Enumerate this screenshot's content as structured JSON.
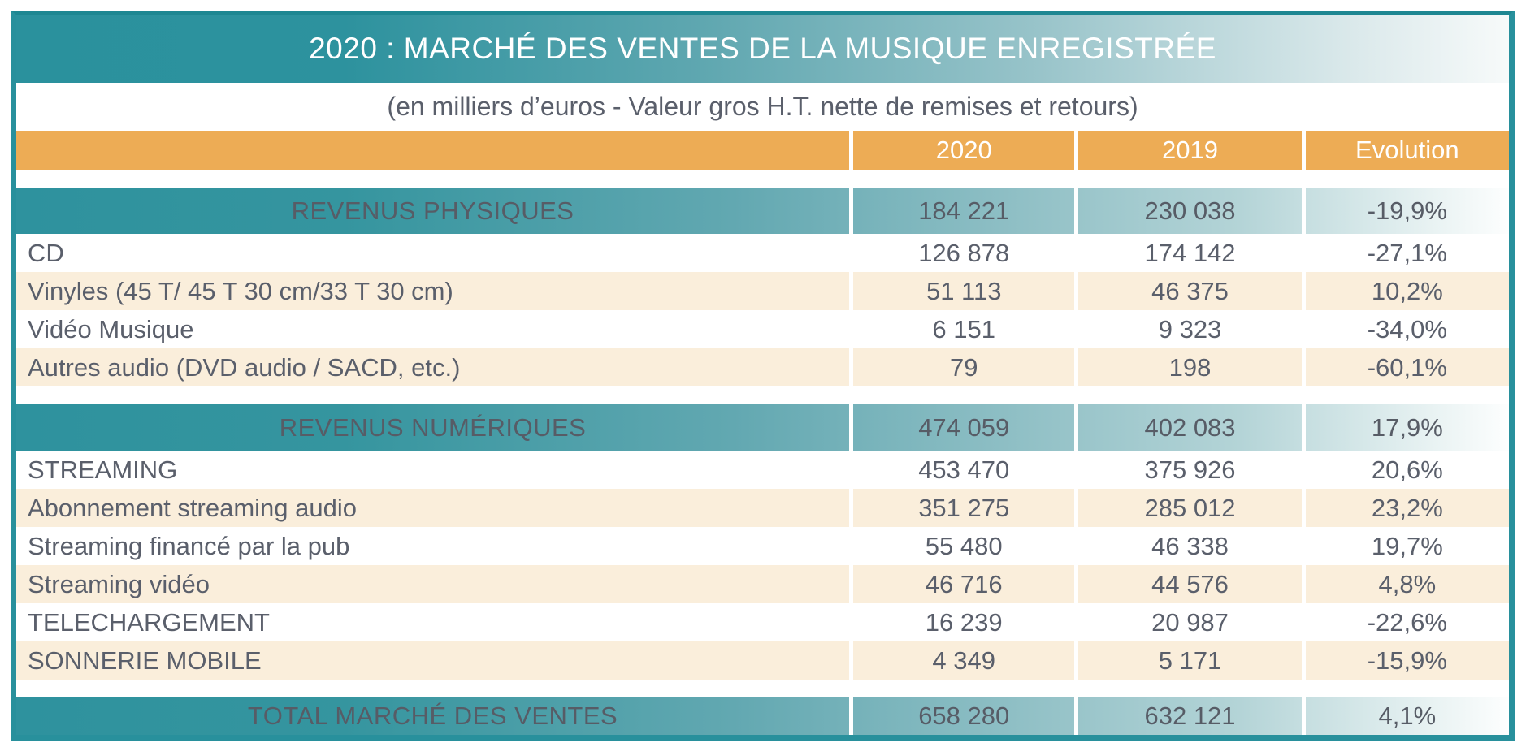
{
  "title": "2020 : MARCHÉ DES VENTES DE LA MUSIQUE ENREGISTRÉE",
  "subtitle": "(en milliers d’euros - Valeur gros H.T. nette de remises et retours)",
  "header": {
    "columns": [
      "",
      "2020",
      "2019",
      "Evolution"
    ]
  },
  "rows": [
    {
      "type": "section",
      "label": "REVENUS PHYSIQUES",
      "v2020": "184 221",
      "v2019": "230 038",
      "evolution": "-19,9%"
    },
    {
      "type": "data",
      "label": "CD",
      "v2020": "126 878",
      "v2019": "174 142",
      "evolution": "-27,1%"
    },
    {
      "type": "data",
      "label": "Vinyles (45 T/ 45 T 30 cm/33 T 30 cm)",
      "v2020": "51 113",
      "v2019": "46 375",
      "evolution": "10,2%"
    },
    {
      "type": "data",
      "label": "Vidéo Musique",
      "v2020": "6 151",
      "v2019": "9 323",
      "evolution": "-34,0%"
    },
    {
      "type": "data",
      "label": "Autres audio (DVD audio / SACD, etc.)",
      "v2020": "79",
      "v2019": "198",
      "evolution": "-60,1%"
    },
    {
      "type": "section",
      "label": "REVENUS NUMÉRIQUES",
      "v2020": "474 059",
      "v2019": "402 083",
      "evolution": "17,9%"
    },
    {
      "type": "data",
      "label": "STREAMING",
      "v2020": "453 470",
      "v2019": "375 926",
      "evolution": "20,6%"
    },
    {
      "type": "data",
      "label": "Abonnement streaming audio",
      "v2020": "351 275",
      "v2019": "285 012",
      "evolution": "23,2%"
    },
    {
      "type": "data",
      "label": "Streaming financé par la pub",
      "v2020": "55 480",
      "v2019": "46 338",
      "evolution": "19,7%"
    },
    {
      "type": "data",
      "label": "Streaming vidéo",
      "v2020": "46 716",
      "v2019": "44 576",
      "evolution": "4,8%"
    },
    {
      "type": "data",
      "label": "TELECHARGEMENT",
      "v2020": "16 239",
      "v2019": "20 987",
      "evolution": "-22,6%"
    },
    {
      "type": "data",
      "label": "SONNERIE MOBILE",
      "v2020": "4 349",
      "v2019": "5 171",
      "evolution": "-15,9%"
    },
    {
      "type": "total",
      "label": "TOTAL MARCHÉ DES VENTES",
      "v2020": "658 280",
      "v2019": "632 121",
      "evolution": "4,1%"
    }
  ],
  "colors": {
    "accent_teal": "#2A919D",
    "border_teal": "#28909C",
    "header_orange": "#EDAC55",
    "zebra_cream": "#FAEEDB",
    "text_dark": "#5A5F6B",
    "text_light": "#FFFFFF"
  }
}
